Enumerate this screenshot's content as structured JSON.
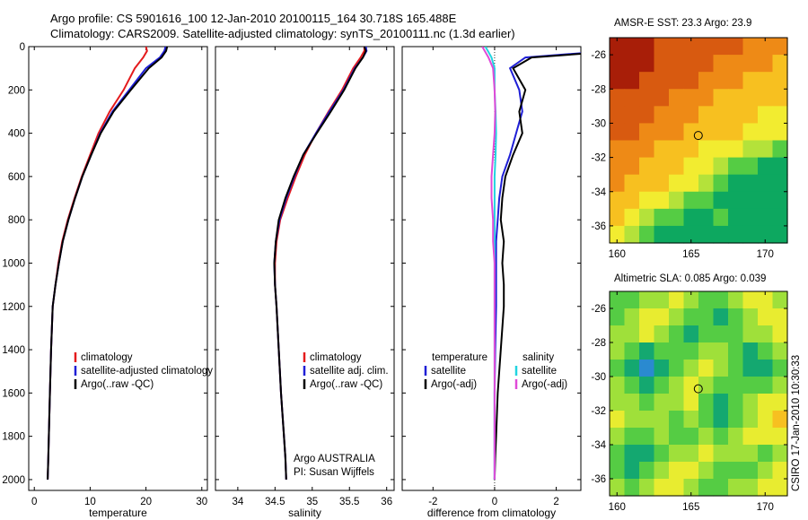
{
  "header": {
    "line1": "Argo profile: CS 5901616_100 12-Jan-2010 20100115_164 30.718S 165.488E",
    "line2": "Climatology: CARS2009. Satellite-adjusted climatology: synTS_20100111.nc (1.3d earlier)"
  },
  "footer": {
    "org": "Argo AUSTRALIA",
    "pi": "PI: Susan Wijffels",
    "stamp": "CSIRO 17-Jan-2010 10:30:33"
  },
  "chart_data": [
    {
      "type": "line",
      "xlabel": "temperature",
      "xlim": [
        -1,
        31
      ],
      "xticks": [
        0,
        10,
        20,
        30
      ],
      "ylim": [
        0,
        2050
      ],
      "yticks": [
        0,
        200,
        400,
        600,
        800,
        1000,
        1200,
        1400,
        1600,
        1800,
        2000
      ],
      "ydir": "reverse",
      "legend": {
        "position": "lower-left"
      },
      "series": [
        {
          "name": "climatology",
          "color": "#e41a1c",
          "x": [
            20.0,
            20.2,
            19.5,
            18.0,
            16.0,
            13.5,
            11.5,
            10.0,
            8.5,
            7.2,
            6.0,
            5.0,
            4.3,
            3.8,
            3.3,
            3.0,
            2.8,
            2.6,
            2.5,
            2.4
          ],
          "y": [
            0,
            20,
            50,
            100,
            200,
            300,
            400,
            500,
            600,
            700,
            800,
            900,
            1000,
            1100,
            1200,
            1400,
            1600,
            1800,
            1900,
            2000
          ]
        },
        {
          "name": "satellite-adjusted climatology",
          "color": "#1f1fd6",
          "x": [
            23.5,
            23.3,
            22.5,
            20.0,
            17.0,
            14.0,
            11.8,
            10.2,
            8.6,
            7.3,
            6.1,
            5.1,
            4.4,
            3.8,
            3.3,
            3.0,
            2.8,
            2.6,
            2.5,
            2.4
          ],
          "y": [
            0,
            20,
            50,
            100,
            200,
            300,
            400,
            500,
            600,
            700,
            800,
            900,
            1000,
            1100,
            1200,
            1400,
            1600,
            1800,
            1900,
            2000
          ]
        },
        {
          "name": "Argo(..raw -QC)",
          "color": "#000000",
          "x": [
            23.8,
            23.6,
            22.8,
            20.5,
            17.3,
            14.2,
            11.9,
            10.2,
            8.6,
            7.3,
            6.1,
            5.1,
            4.4,
            3.8,
            3.3,
            3.0,
            2.8,
            2.6,
            2.5,
            2.4
          ],
          "y": [
            0,
            20,
            50,
            100,
            200,
            300,
            400,
            500,
            600,
            700,
            800,
            900,
            1000,
            1100,
            1200,
            1400,
            1600,
            1800,
            1900,
            2000
          ]
        }
      ]
    },
    {
      "type": "line",
      "xlabel": "salinity",
      "xlim": [
        33.7,
        36.1
      ],
      "xticks": [
        34,
        34.5,
        35,
        35.5,
        36
      ],
      "ylim": [
        0,
        2050
      ],
      "ydir": "reverse",
      "legend": {
        "position": "lower-right"
      },
      "series": [
        {
          "name": "climatology",
          "color": "#e41a1c",
          "x": [
            35.7,
            35.7,
            35.65,
            35.55,
            35.4,
            35.22,
            35.05,
            34.9,
            34.78,
            34.67,
            34.57,
            34.52,
            34.5,
            34.5,
            34.52,
            34.55,
            34.58,
            34.62,
            34.64,
            34.65
          ],
          "y": [
            0,
            20,
            50,
            100,
            200,
            300,
            400,
            500,
            600,
            700,
            800,
            900,
            1000,
            1100,
            1200,
            1400,
            1600,
            1800,
            1900,
            2000
          ]
        },
        {
          "name": "satellite adj. clim.",
          "color": "#1f1fd6",
          "x": [
            35.72,
            35.73,
            35.68,
            35.57,
            35.42,
            35.23,
            35.05,
            34.88,
            34.76,
            34.65,
            34.56,
            34.51,
            34.49,
            34.5,
            34.52,
            34.55,
            34.58,
            34.62,
            34.64,
            34.65
          ],
          "y": [
            0,
            20,
            50,
            100,
            200,
            300,
            400,
            500,
            600,
            700,
            800,
            900,
            1000,
            1100,
            1200,
            1400,
            1600,
            1800,
            1900,
            2000
          ]
        },
        {
          "name": "Argo(..raw -QC)",
          "color": "#000000",
          "x": [
            35.7,
            35.72,
            35.68,
            35.58,
            35.43,
            35.25,
            35.06,
            34.88,
            34.75,
            34.64,
            34.55,
            34.51,
            34.49,
            34.5,
            34.52,
            34.55,
            34.58,
            34.62,
            34.64,
            34.65
          ],
          "y": [
            0,
            20,
            50,
            100,
            200,
            300,
            400,
            500,
            600,
            700,
            800,
            900,
            1000,
            1100,
            1200,
            1400,
            1600,
            1800,
            1900,
            2000
          ]
        }
      ]
    },
    {
      "type": "line",
      "xlabel": "difference from climatology",
      "xlim": [
        -3.0,
        2.8
      ],
      "xticks": [
        -2,
        0,
        2
      ],
      "ylim": [
        0,
        2050
      ],
      "ydir": "reverse",
      "legend": {
        "position": "lower",
        "groups": [
          "temperature",
          "salinity"
        ]
      },
      "series": [
        {
          "name": "satellite",
          "group": "temperature",
          "color": "#1f1fd6",
          "x": [
            3.5,
            3.3,
            1.0,
            0.5,
            0.8,
            0.9,
            0.7,
            0.5,
            0.25,
            0.15,
            0.1,
            0.05,
            0.05,
            0.05,
            0.05,
            0.02,
            0.0,
            0.0,
            0.0,
            0.0
          ],
          "y": [
            0,
            25,
            50,
            100,
            200,
            300,
            400,
            500,
            600,
            700,
            800,
            900,
            1000,
            1100,
            1200,
            1400,
            1600,
            1800,
            1900,
            2000
          ]
        },
        {
          "name": "Argo(-adj)",
          "group": "temperature",
          "color": "#000000",
          "x": [
            3.8,
            3.6,
            1.2,
            0.6,
            1.0,
            0.8,
            0.9,
            0.6,
            0.35,
            0.25,
            0.2,
            0.3,
            0.25,
            0.3,
            0.3,
            0.2,
            0.1,
            0.05,
            0.02,
            0.0
          ],
          "y": [
            0,
            25,
            50,
            100,
            200,
            300,
            400,
            500,
            600,
            700,
            800,
            900,
            1000,
            1100,
            1200,
            1400,
            1600,
            1800,
            1900,
            2000
          ]
        },
        {
          "name": "satellite",
          "group": "salinity",
          "color": "#22d4e0",
          "x": [
            -0.3,
            -0.2,
            -0.1,
            0.0,
            0.0,
            0.03,
            0.05,
            0.03,
            0.0,
            0.0,
            0.0,
            0.0,
            0.0,
            0.0,
            0.0,
            0.0,
            0.0,
            0.0,
            0.0,
            0.0
          ],
          "y": [
            0,
            25,
            50,
            100,
            200,
            300,
            400,
            500,
            600,
            700,
            800,
            900,
            1000,
            1100,
            1200,
            1400,
            1600,
            1800,
            1900,
            2000
          ]
        },
        {
          "name": "Argo(-adj)",
          "group": "salinity",
          "color": "#e04ad8",
          "x": [
            -0.4,
            -0.3,
            -0.2,
            -0.05,
            0.0,
            0.02,
            0.0,
            -0.05,
            -0.1,
            -0.1,
            -0.05,
            -0.05,
            0.0,
            0.0,
            0.0,
            0.0,
            0.0,
            0.0,
            0.0,
            0.0
          ],
          "y": [
            0,
            25,
            50,
            100,
            200,
            300,
            400,
            500,
            600,
            700,
            800,
            900,
            1000,
            1100,
            1200,
            1400,
            1600,
            1800,
            1900,
            2000
          ]
        }
      ]
    },
    {
      "type": "heatmap",
      "title": "AMSR-E SST: 23.3 Argo: 23.9",
      "xlim": [
        159.5,
        171.5
      ],
      "xticks": [
        160,
        165,
        170
      ],
      "ylim": [
        -37,
        -25
      ],
      "yticks": [
        -26,
        -28,
        -30,
        -32,
        -34,
        -36
      ],
      "marker": {
        "lon": 165.488,
        "lat": -30.718
      },
      "colors": [
        "#0da860",
        "#55cc44",
        "#b4e23a",
        "#f2ec30",
        "#f7c020",
        "#ee8a16",
        "#d85a10",
        "#a81e08"
      ],
      "grid": [
        [
          7,
          7,
          7,
          6,
          6,
          6,
          6,
          6,
          6,
          5,
          5,
          5
        ],
        [
          7,
          7,
          7,
          6,
          6,
          6,
          6,
          5,
          5,
          5,
          5,
          4
        ],
        [
          7,
          7,
          6,
          6,
          6,
          6,
          5,
          5,
          5,
          4,
          4,
          4
        ],
        [
          6,
          6,
          6,
          6,
          5,
          5,
          5,
          4,
          4,
          4,
          4,
          4
        ],
        [
          6,
          6,
          6,
          5,
          5,
          5,
          4,
          4,
          4,
          4,
          3,
          3
        ],
        [
          6,
          6,
          5,
          5,
          5,
          4,
          4,
          4,
          4,
          3,
          3,
          3
        ],
        [
          5,
          5,
          5,
          4,
          4,
          4,
          3,
          3,
          3,
          2,
          2,
          1
        ],
        [
          5,
          5,
          4,
          4,
          4,
          3,
          3,
          2,
          1,
          1,
          0,
          0
        ],
        [
          5,
          4,
          4,
          4,
          3,
          3,
          2,
          1,
          0,
          0,
          0,
          0
        ],
        [
          4,
          4,
          3,
          3,
          2,
          1,
          1,
          0,
          0,
          0,
          0,
          0
        ],
        [
          4,
          3,
          2,
          1,
          1,
          0,
          0,
          1,
          0,
          0,
          0,
          0
        ],
        [
          3,
          2,
          1,
          0,
          0,
          0,
          0,
          0,
          0,
          0,
          0,
          0
        ]
      ]
    },
    {
      "type": "heatmap",
      "title": "Altimetric SLA: 0.085 Argo: 0.039",
      "xlim": [
        159.5,
        171.5
      ],
      "xticks": [
        160,
        165,
        170
      ],
      "ylim": [
        -37,
        -25
      ],
      "yticks": [
        -26,
        -28,
        -30,
        -32,
        -34,
        -36
      ],
      "marker": {
        "lon": 165.488,
        "lat": -30.718
      },
      "colors": [
        "#2a8ad0",
        "#14a870",
        "#55cc44",
        "#9fe03a",
        "#e8ec30",
        "#f7c020"
      ],
      "grid": [
        [
          2,
          2,
          3,
          3,
          4,
          3,
          2,
          2,
          3,
          4,
          4,
          3
        ],
        [
          2,
          3,
          4,
          4,
          3,
          2,
          2,
          1,
          2,
          3,
          4,
          4
        ],
        [
          3,
          3,
          4,
          3,
          2,
          1,
          2,
          2,
          2,
          3,
          3,
          4
        ],
        [
          3,
          2,
          1,
          2,
          2,
          2,
          3,
          3,
          2,
          1,
          2,
          3
        ],
        [
          2,
          1,
          0,
          1,
          2,
          3,
          4,
          3,
          2,
          1,
          1,
          2
        ],
        [
          3,
          2,
          1,
          2,
          3,
          4,
          3,
          2,
          2,
          2,
          2,
          3
        ],
        [
          3,
          3,
          2,
          3,
          3,
          4,
          2,
          1,
          2,
          3,
          4,
          4
        ],
        [
          4,
          3,
          3,
          3,
          2,
          3,
          2,
          1,
          2,
          3,
          4,
          5
        ],
        [
          3,
          2,
          2,
          3,
          2,
          2,
          3,
          2,
          3,
          4,
          4,
          4
        ],
        [
          2,
          1,
          1,
          2,
          3,
          3,
          4,
          3,
          3,
          3,
          2,
          3
        ],
        [
          2,
          1,
          2,
          3,
          4,
          4,
          3,
          2,
          2,
          2,
          3,
          4
        ],
        [
          3,
          2,
          3,
          4,
          4,
          3,
          2,
          2,
          3,
          3,
          4,
          4
        ]
      ]
    }
  ]
}
